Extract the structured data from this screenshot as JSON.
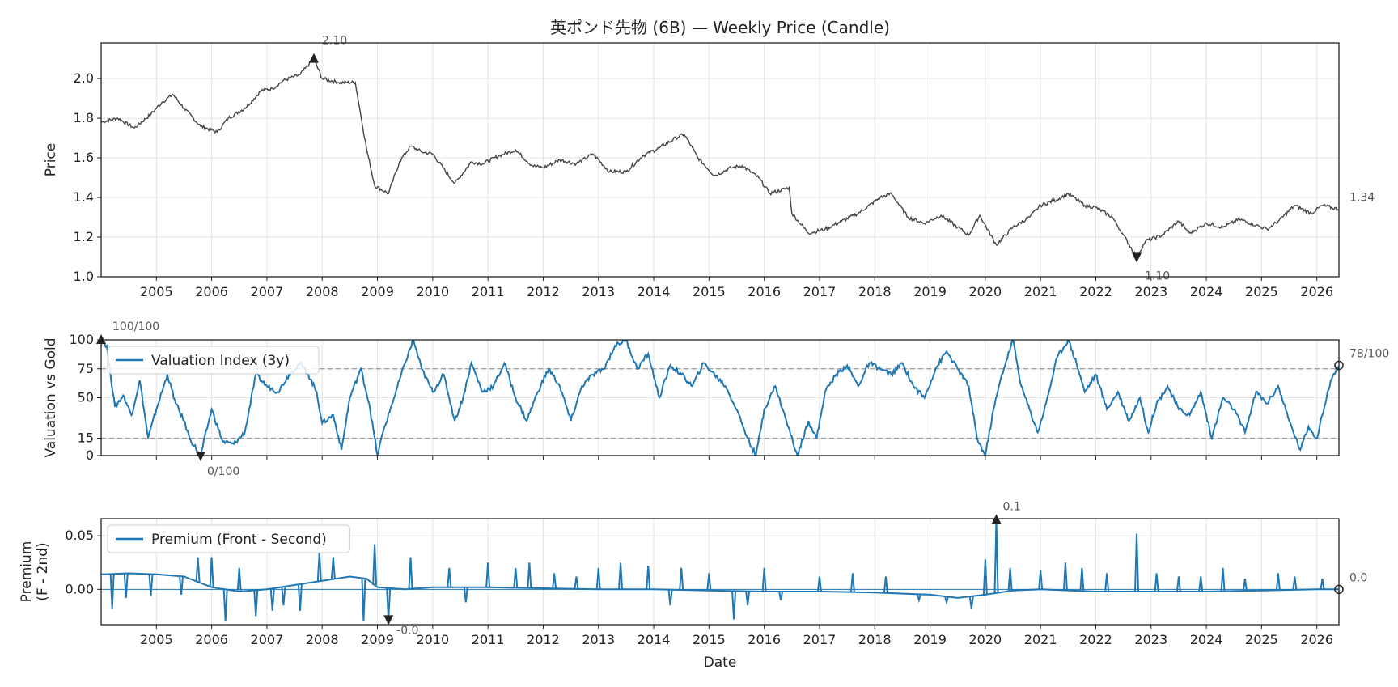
{
  "chart_data": [
    {
      "type": "line",
      "title": "英ポンド先物 (6B) — Weekly Price (Candle)",
      "ylabel": "Price",
      "xlabel": "",
      "ylim": [
        1.0,
        2.18
      ],
      "yticks": [
        "1.0",
        "1.2",
        "1.4",
        "1.6",
        "1.8",
        "2.0"
      ],
      "xticks": [
        "2005",
        "2006",
        "2007",
        "2008",
        "2009",
        "2010",
        "2011",
        "2012",
        "2013",
        "2014",
        "2015",
        "2016",
        "2017",
        "2018",
        "2019",
        "2020",
        "2021",
        "2022",
        "2023",
        "2024",
        "2025",
        "2026"
      ],
      "xlim": [
        2004.0,
        2026.4
      ],
      "grid": true,
      "color": "#444444",
      "points": [
        [
          2004.0,
          1.78
        ],
        [
          2004.3,
          1.8
        ],
        [
          2004.6,
          1.75
        ],
        [
          2004.9,
          1.82
        ],
        [
          2005.1,
          1.88
        ],
        [
          2005.3,
          1.92
        ],
        [
          2005.5,
          1.85
        ],
        [
          2005.8,
          1.76
        ],
        [
          2006.1,
          1.73
        ],
        [
          2006.3,
          1.8
        ],
        [
          2006.6,
          1.85
        ],
        [
          2006.9,
          1.94
        ],
        [
          2007.1,
          1.95
        ],
        [
          2007.3,
          1.99
        ],
        [
          2007.6,
          2.02
        ],
        [
          2007.85,
          2.1
        ],
        [
          2008.0,
          2.0
        ],
        [
          2008.3,
          1.98
        ],
        [
          2008.6,
          1.98
        ],
        [
          2008.8,
          1.65
        ],
        [
          2008.95,
          1.46
        ],
        [
          2009.2,
          1.42
        ],
        [
          2009.4,
          1.58
        ],
        [
          2009.6,
          1.66
        ],
        [
          2009.8,
          1.63
        ],
        [
          2010.0,
          1.62
        ],
        [
          2010.4,
          1.47
        ],
        [
          2010.7,
          1.58
        ],
        [
          2010.9,
          1.57
        ],
        [
          2011.2,
          1.61
        ],
        [
          2011.5,
          1.64
        ],
        [
          2011.8,
          1.56
        ],
        [
          2012.0,
          1.55
        ],
        [
          2012.3,
          1.59
        ],
        [
          2012.6,
          1.57
        ],
        [
          2012.9,
          1.62
        ],
        [
          2013.2,
          1.53
        ],
        [
          2013.5,
          1.53
        ],
        [
          2013.8,
          1.61
        ],
        [
          2014.1,
          1.65
        ],
        [
          2014.4,
          1.7
        ],
        [
          2014.55,
          1.72
        ],
        [
          2014.8,
          1.6
        ],
        [
          2015.1,
          1.51
        ],
        [
          2015.4,
          1.55
        ],
        [
          2015.6,
          1.56
        ],
        [
          2015.9,
          1.5
        ],
        [
          2016.1,
          1.42
        ],
        [
          2016.45,
          1.45
        ],
        [
          2016.5,
          1.32
        ],
        [
          2016.8,
          1.22
        ],
        [
          2017.1,
          1.24
        ],
        [
          2017.4,
          1.28
        ],
        [
          2017.7,
          1.32
        ],
        [
          2018.1,
          1.4
        ],
        [
          2018.3,
          1.42
        ],
        [
          2018.6,
          1.3
        ],
        [
          2018.9,
          1.27
        ],
        [
          2019.2,
          1.31
        ],
        [
          2019.5,
          1.25
        ],
        [
          2019.7,
          1.21
        ],
        [
          2019.9,
          1.31
        ],
        [
          2020.2,
          1.16
        ],
        [
          2020.5,
          1.25
        ],
        [
          2020.8,
          1.3
        ],
        [
          2021.0,
          1.36
        ],
        [
          2021.3,
          1.39
        ],
        [
          2021.5,
          1.42
        ],
        [
          2021.8,
          1.36
        ],
        [
          2022.0,
          1.35
        ],
        [
          2022.3,
          1.3
        ],
        [
          2022.5,
          1.21
        ],
        [
          2022.74,
          1.1
        ],
        [
          2022.9,
          1.18
        ],
        [
          2023.2,
          1.21
        ],
        [
          2023.5,
          1.28
        ],
        [
          2023.7,
          1.22
        ],
        [
          2024.0,
          1.27
        ],
        [
          2024.3,
          1.25
        ],
        [
          2024.6,
          1.29
        ],
        [
          2024.9,
          1.26
        ],
        [
          2025.1,
          1.24
        ],
        [
          2025.3,
          1.28
        ],
        [
          2025.6,
          1.36
        ],
        [
          2025.9,
          1.32
        ],
        [
          2026.1,
          1.36
        ],
        [
          2026.4,
          1.34
        ]
      ],
      "annotations": [
        {
          "label": "2.10",
          "x": 2007.85,
          "y": 2.1,
          "marker": "up"
        },
        {
          "label": "1.10",
          "x": 2022.74,
          "y": 1.1,
          "marker": "down"
        },
        {
          "label": "1.34",
          "x": 2026.4,
          "y": 1.34,
          "marker": "none"
        }
      ]
    },
    {
      "type": "line",
      "ylabel": "Valuation vs Gold",
      "ylim": [
        0,
        100
      ],
      "yticks": [
        "0",
        "15",
        "50",
        "75",
        "100"
      ],
      "reference_lines": [
        15,
        75
      ],
      "xlim": [
        2004.0,
        2026.4
      ],
      "grid": true,
      "color": "#1f77b4",
      "legend": {
        "entries": [
          "Valuation Index (3y)"
        ],
        "placement": "upper-left"
      },
      "points": [
        [
          2004.0,
          100
        ],
        [
          2004.1,
          95
        ],
        [
          2004.25,
          42
        ],
        [
          2004.4,
          52
        ],
        [
          2004.55,
          35
        ],
        [
          2004.7,
          65
        ],
        [
          2004.85,
          15
        ],
        [
          2005.0,
          40
        ],
        [
          2005.2,
          70
        ],
        [
          2005.35,
          45
        ],
        [
          2005.5,
          30
        ],
        [
          2005.6,
          15
        ],
        [
          2005.8,
          0
        ],
        [
          2006.0,
          40
        ],
        [
          2006.2,
          12
        ],
        [
          2006.4,
          10
        ],
        [
          2006.6,
          20
        ],
        [
          2006.8,
          70
        ],
        [
          2007.0,
          60
        ],
        [
          2007.2,
          55
        ],
        [
          2007.4,
          70
        ],
        [
          2007.6,
          80
        ],
        [
          2007.75,
          70
        ],
        [
          2007.9,
          55
        ],
        [
          2008.0,
          28
        ],
        [
          2008.2,
          35
        ],
        [
          2008.35,
          5
        ],
        [
          2008.5,
          50
        ],
        [
          2008.7,
          75
        ],
        [
          2008.85,
          45
        ],
        [
          2009.0,
          0
        ],
        [
          2009.1,
          20
        ],
        [
          2009.3,
          50
        ],
        [
          2009.5,
          80
        ],
        [
          2009.65,
          100
        ],
        [
          2009.8,
          75
        ],
        [
          2010.0,
          55
        ],
        [
          2010.2,
          70
        ],
        [
          2010.4,
          30
        ],
        [
          2010.55,
          50
        ],
        [
          2010.7,
          80
        ],
        [
          2010.9,
          55
        ],
        [
          2011.1,
          60
        ],
        [
          2011.3,
          80
        ],
        [
          2011.5,
          50
        ],
        [
          2011.7,
          30
        ],
        [
          2011.9,
          55
        ],
        [
          2012.1,
          75
        ],
        [
          2012.3,
          60
        ],
        [
          2012.5,
          30
        ],
        [
          2012.7,
          60
        ],
        [
          2012.9,
          70
        ],
        [
          2013.1,
          75
        ],
        [
          2013.3,
          95
        ],
        [
          2013.5,
          100
        ],
        [
          2013.7,
          75
        ],
        [
          2013.9,
          88
        ],
        [
          2014.1,
          50
        ],
        [
          2014.3,
          78
        ],
        [
          2014.5,
          70
        ],
        [
          2014.7,
          60
        ],
        [
          2014.9,
          80
        ],
        [
          2015.1,
          70
        ],
        [
          2015.3,
          60
        ],
        [
          2015.5,
          40
        ],
        [
          2015.7,
          15
        ],
        [
          2015.85,
          0
        ],
        [
          2016.0,
          40
        ],
        [
          2016.2,
          60
        ],
        [
          2016.4,
          30
        ],
        [
          2016.6,
          0
        ],
        [
          2016.8,
          30
        ],
        [
          2016.95,
          15
        ],
        [
          2017.1,
          55
        ],
        [
          2017.3,
          70
        ],
        [
          2017.5,
          78
        ],
        [
          2017.7,
          60
        ],
        [
          2017.9,
          80
        ],
        [
          2018.1,
          75
        ],
        [
          2018.3,
          70
        ],
        [
          2018.5,
          80
        ],
        [
          2018.7,
          60
        ],
        [
          2018.9,
          50
        ],
        [
          2019.1,
          75
        ],
        [
          2019.3,
          90
        ],
        [
          2019.5,
          75
        ],
        [
          2019.7,
          60
        ],
        [
          2019.85,
          15
        ],
        [
          2020.0,
          0
        ],
        [
          2020.15,
          40
        ],
        [
          2020.3,
          70
        ],
        [
          2020.5,
          100
        ],
        [
          2020.65,
          60
        ],
        [
          2020.8,
          40
        ],
        [
          2020.95,
          20
        ],
        [
          2021.1,
          45
        ],
        [
          2021.3,
          85
        ],
        [
          2021.5,
          100
        ],
        [
          2021.65,
          80
        ],
        [
          2021.8,
          55
        ],
        [
          2022.0,
          70
        ],
        [
          2022.2,
          40
        ],
        [
          2022.4,
          55
        ],
        [
          2022.6,
          30
        ],
        [
          2022.8,
          50
        ],
        [
          2022.95,
          20
        ],
        [
          2023.1,
          45
        ],
        [
          2023.3,
          60
        ],
        [
          2023.5,
          40
        ],
        [
          2023.7,
          35
        ],
        [
          2023.9,
          55
        ],
        [
          2024.1,
          15
        ],
        [
          2024.3,
          50
        ],
        [
          2024.5,
          40
        ],
        [
          2024.7,
          20
        ],
        [
          2024.9,
          55
        ],
        [
          2025.1,
          45
        ],
        [
          2025.3,
          60
        ],
        [
          2025.5,
          30
        ],
        [
          2025.7,
          5
        ],
        [
          2025.85,
          25
        ],
        [
          2026.0,
          15
        ],
        [
          2026.1,
          35
        ],
        [
          2026.25,
          65
        ],
        [
          2026.4,
          78
        ]
      ],
      "annotations": [
        {
          "label": "100/100",
          "x": 2004.0,
          "y": 100,
          "marker": "up"
        },
        {
          "label": "0/100",
          "x": 2005.8,
          "y": 0,
          "marker": "down"
        },
        {
          "label": "78/100",
          "x": 2026.4,
          "y": 78,
          "marker": "circle"
        }
      ]
    },
    {
      "type": "line",
      "ylabel": "Premium\n(F - 2nd)",
      "xlabel": "Date",
      "ylim": [
        -0.033,
        0.066
      ],
      "yticks": [
        "0.00",
        "0.05"
      ],
      "xticks": [
        "2005",
        "2006",
        "2007",
        "2008",
        "2009",
        "2010",
        "2011",
        "2012",
        "2013",
        "2014",
        "2015",
        "2016",
        "2017",
        "2018",
        "2019",
        "2020",
        "2021",
        "2022",
        "2023",
        "2024",
        "2025",
        "2026"
      ],
      "reference_lines": [
        0
      ],
      "xlim": [
        2004.0,
        2026.4
      ],
      "grid": true,
      "color": "#1f77b4",
      "legend": {
        "entries": [
          "Premium (Front - Second)"
        ],
        "placement": "upper-left"
      },
      "baseline_points": [
        [
          2004.0,
          0.014
        ],
        [
          2004.5,
          0.015
        ],
        [
          2005.0,
          0.014
        ],
        [
          2005.5,
          0.012
        ],
        [
          2006.0,
          0.002
        ],
        [
          2006.5,
          -0.002
        ],
        [
          2007.0,
          0.0
        ],
        [
          2007.5,
          0.004
        ],
        [
          2008.0,
          0.008
        ],
        [
          2008.5,
          0.012
        ],
        [
          2008.8,
          0.01
        ],
        [
          2009.0,
          0.002
        ],
        [
          2009.5,
          0.0
        ],
        [
          2010.0,
          0.002
        ],
        [
          2011.0,
          0.002
        ],
        [
          2012.0,
          0.001
        ],
        [
          2013.0,
          0.0
        ],
        [
          2014.0,
          0.0
        ],
        [
          2015.0,
          -0.001
        ],
        [
          2016.0,
          -0.002
        ],
        [
          2017.0,
          -0.002
        ],
        [
          2018.0,
          -0.003
        ],
        [
          2019.0,
          -0.005
        ],
        [
          2019.5,
          -0.008
        ],
        [
          2020.0,
          -0.005
        ],
        [
          2020.5,
          -0.001
        ],
        [
          2021.0,
          0.0
        ],
        [
          2022.0,
          -0.002
        ],
        [
          2023.0,
          -0.002
        ],
        [
          2024.0,
          -0.002
        ],
        [
          2025.0,
          -0.001
        ],
        [
          2026.0,
          0.0
        ],
        [
          2026.4,
          0.0
        ]
      ],
      "spikes": [
        [
          2004.2,
          -0.018
        ],
        [
          2004.45,
          -0.008
        ],
        [
          2004.9,
          -0.006
        ],
        [
          2005.45,
          -0.005
        ],
        [
          2005.75,
          0.03
        ],
        [
          2006.0,
          0.03
        ],
        [
          2006.25,
          -0.03
        ],
        [
          2006.5,
          0.02
        ],
        [
          2006.8,
          -0.025
        ],
        [
          2007.1,
          -0.02
        ],
        [
          2007.3,
          -0.015
        ],
        [
          2007.6,
          -0.02
        ],
        [
          2007.95,
          0.035
        ],
        [
          2008.2,
          0.03
        ],
        [
          2008.75,
          -0.03
        ],
        [
          2008.95,
          0.042
        ],
        [
          2009.2,
          -0.028
        ],
        [
          2009.6,
          0.03
        ],
        [
          2010.3,
          0.02
        ],
        [
          2010.6,
          -0.012
        ],
        [
          2011.0,
          0.025
        ],
        [
          2011.5,
          0.02
        ],
        [
          2011.75,
          0.025
        ],
        [
          2012.2,
          0.015
        ],
        [
          2012.6,
          0.012
        ],
        [
          2013.0,
          0.02
        ],
        [
          2013.4,
          0.025
        ],
        [
          2013.9,
          0.022
        ],
        [
          2014.3,
          -0.015
        ],
        [
          2014.5,
          0.02
        ],
        [
          2015.0,
          0.015
        ],
        [
          2015.45,
          -0.028
        ],
        [
          2015.7,
          -0.015
        ],
        [
          2016.0,
          0.02
        ],
        [
          2016.3,
          -0.01
        ],
        [
          2017.0,
          0.012
        ],
        [
          2017.6,
          0.015
        ],
        [
          2018.2,
          0.012
        ],
        [
          2018.8,
          -0.01
        ],
        [
          2019.3,
          -0.012
        ],
        [
          2019.75,
          -0.018
        ],
        [
          2020.0,
          0.028
        ],
        [
          2020.2,
          0.065
        ],
        [
          2020.45,
          0.02
        ],
        [
          2021.0,
          0.018
        ],
        [
          2021.45,
          0.025
        ],
        [
          2021.75,
          0.02
        ],
        [
          2022.2,
          0.015
        ],
        [
          2022.74,
          0.052
        ],
        [
          2023.1,
          0.015
        ],
        [
          2023.5,
          0.012
        ],
        [
          2023.9,
          0.012
        ],
        [
          2024.3,
          0.02
        ],
        [
          2024.7,
          0.01
        ],
        [
          2025.3,
          0.015
        ],
        [
          2025.6,
          0.012
        ],
        [
          2026.1,
          0.01
        ]
      ],
      "annotations": [
        {
          "label": "0.1",
          "x": 2020.2,
          "y": 0.065,
          "marker": "up"
        },
        {
          "label": "-0.0",
          "x": 2009.2,
          "y": -0.028,
          "marker": "down"
        },
        {
          "label": "0.0",
          "x": 2026.4,
          "y": 0.0,
          "marker": "circle"
        }
      ]
    }
  ]
}
